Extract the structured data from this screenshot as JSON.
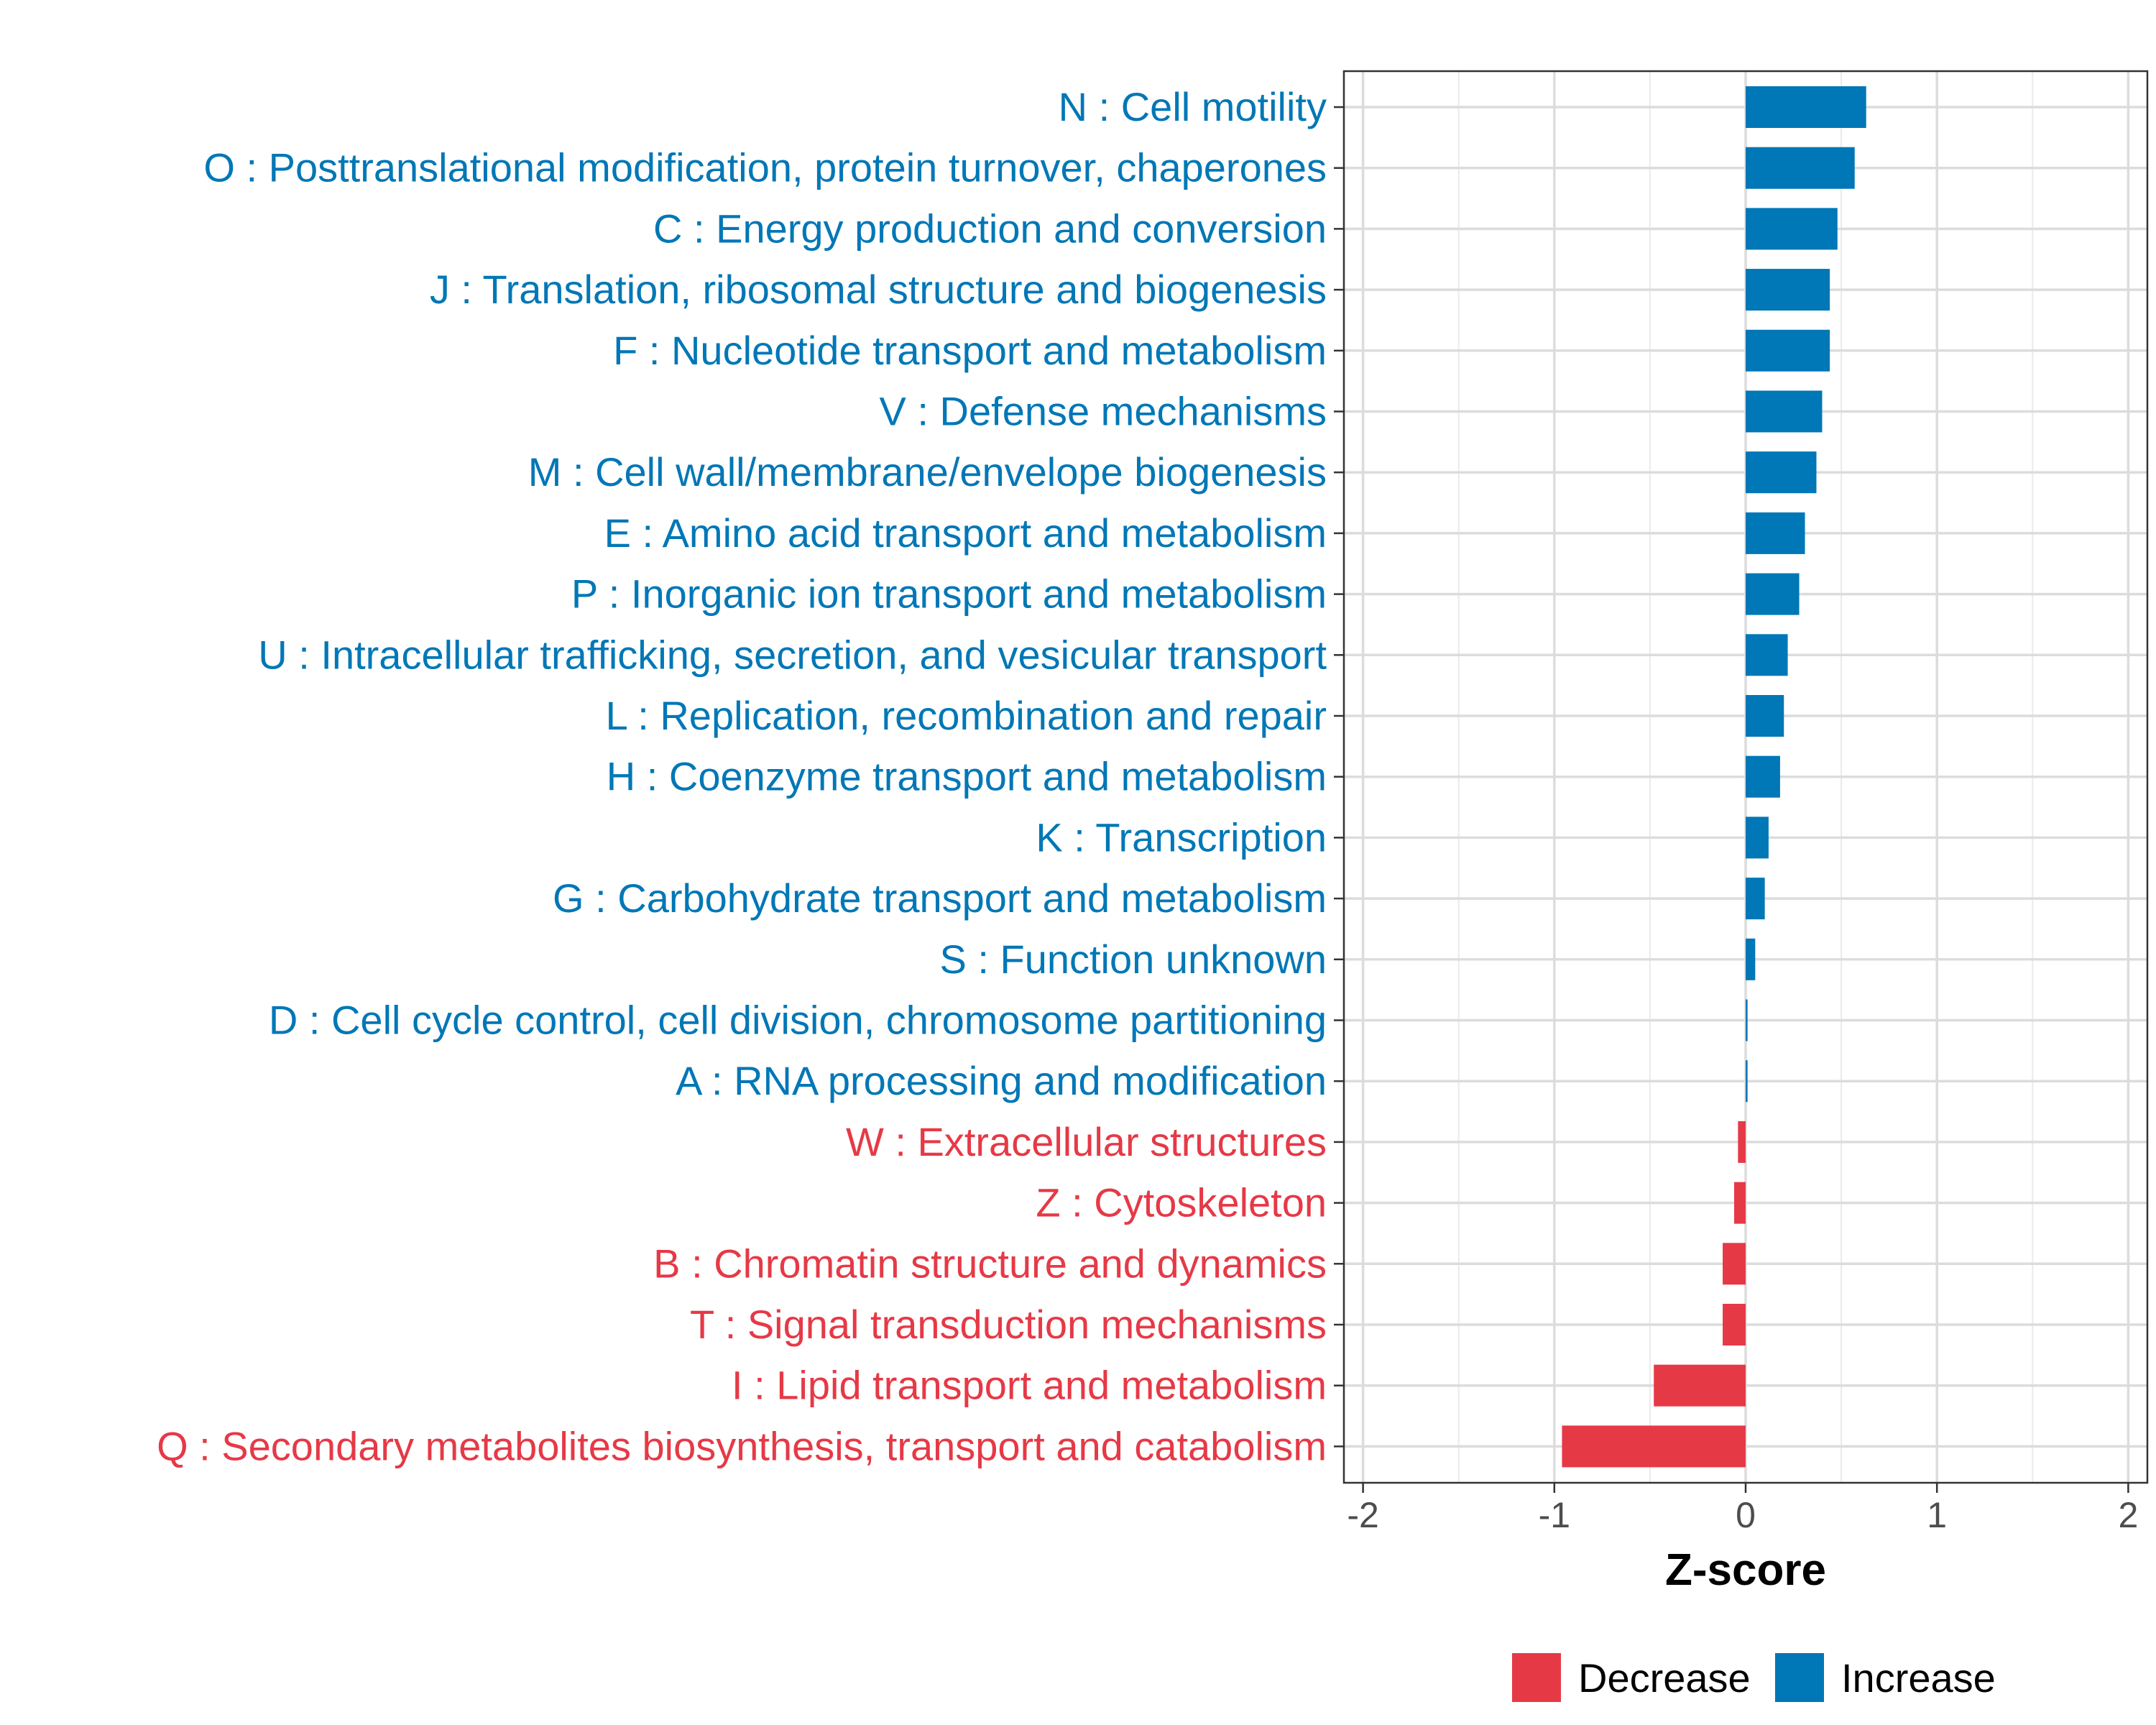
{
  "chart_data": {
    "type": "bar",
    "orientation": "horizontal",
    "title": "",
    "xlabel": "Z-score",
    "ylabel": "",
    "xlim": [
      -2.1,
      2.1
    ],
    "xticks": [
      -2,
      -1,
      0,
      1,
      2
    ],
    "xtick_labels": [
      "-2",
      "-1",
      "0",
      "1",
      "2"
    ],
    "grid": true,
    "legend_position": "bottom",
    "categories": [
      "N : Cell motility",
      "O : Posttranslational modification, protein turnover, chaperones",
      "C : Energy production and conversion",
      "J : Translation, ribosomal structure and biogenesis",
      "F : Nucleotide transport and metabolism",
      "V : Defense mechanisms",
      "M : Cell wall/membrane/envelope biogenesis",
      "E : Amino acid transport and metabolism",
      "P : Inorganic ion transport and metabolism",
      "U : Intracellular trafficking, secretion, and vesicular transport",
      "L : Replication, recombination and repair",
      "H : Coenzyme transport and metabolism",
      "K : Transcription",
      "G : Carbohydrate transport and metabolism",
      "S : Function unknown",
      "D : Cell cycle control, cell division, chromosome partitioning",
      "A : RNA processing and modification",
      "W : Extracellular structures",
      "Z : Cytoskeleton",
      "B : Chromatin structure and dynamics",
      "T : Signal transduction mechanisms",
      "I : Lipid transport and metabolism",
      "Q : Secondary metabolites biosynthesis, transport and catabolism"
    ],
    "values": [
      0.63,
      0.57,
      0.48,
      0.44,
      0.44,
      0.4,
      0.37,
      0.31,
      0.28,
      0.22,
      0.2,
      0.18,
      0.12,
      0.1,
      0.05,
      0.01,
      0.01,
      -0.04,
      -0.06,
      -0.12,
      -0.12,
      -0.48,
      -0.96
    ],
    "groups": [
      "Increase",
      "Increase",
      "Increase",
      "Increase",
      "Increase",
      "Increase",
      "Increase",
      "Increase",
      "Increase",
      "Increase",
      "Increase",
      "Increase",
      "Increase",
      "Increase",
      "Increase",
      "Increase",
      "Increase",
      "Decrease",
      "Decrease",
      "Decrease",
      "Decrease",
      "Decrease",
      "Decrease"
    ],
    "legend": [
      {
        "name": "Decrease",
        "color": "#E63946"
      },
      {
        "name": "Increase",
        "color": "#0077B6"
      }
    ]
  }
}
